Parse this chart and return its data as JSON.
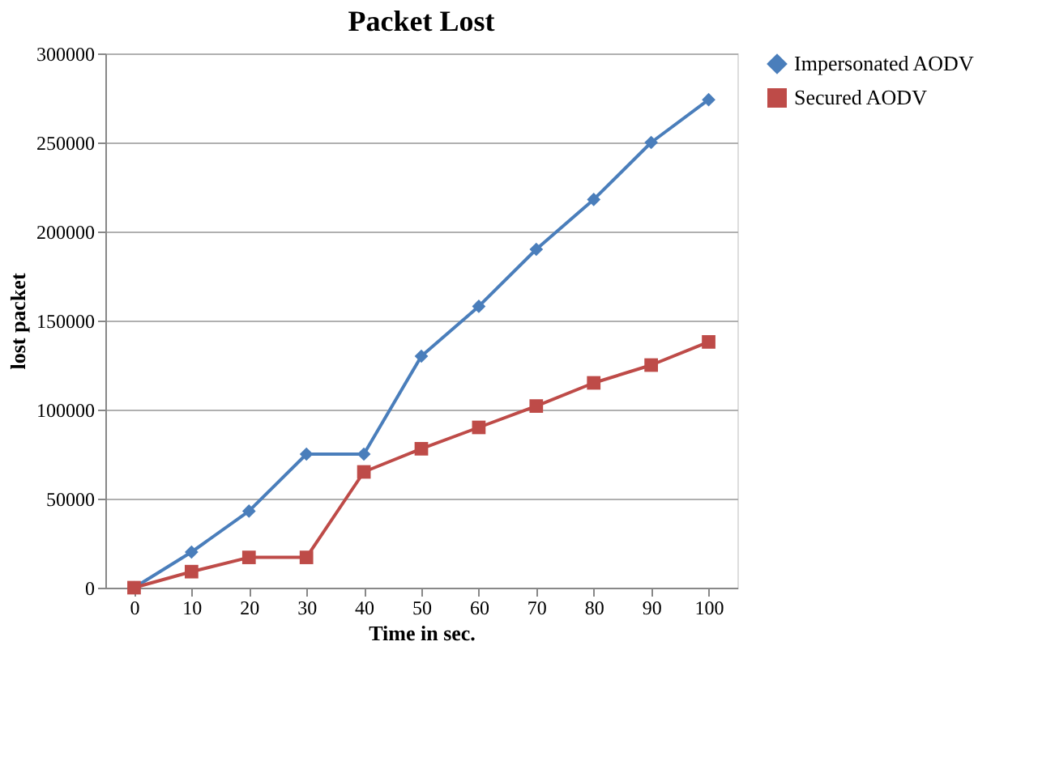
{
  "chart_data": {
    "type": "line",
    "title": "Packet Lost",
    "xlabel": "Time in sec.",
    "ylabel": "lost packet",
    "categories": [
      "0",
      "10",
      "20",
      "30",
      "40",
      "50",
      "60",
      "70",
      "80",
      "90",
      "100"
    ],
    "series": [
      {
        "name": "Impersonated AODV",
        "color": "#4a7ebb",
        "marker": "diamond",
        "values": [
          0,
          20000,
          43000,
          75000,
          75000,
          130000,
          158000,
          190000,
          218000,
          250000,
          274000
        ]
      },
      {
        "name": "Secured AODV",
        "color": "#be4b48",
        "marker": "square",
        "values": [
          0,
          9000,
          17000,
          17000,
          65000,
          78000,
          90000,
          102000,
          115000,
          125000,
          138000
        ]
      }
    ],
    "ylim": [
      0,
      300000
    ],
    "yticks": [
      0,
      50000,
      100000,
      150000,
      200000,
      250000,
      300000
    ],
    "grid": "y",
    "legend": "right",
    "line_style": "solid"
  }
}
